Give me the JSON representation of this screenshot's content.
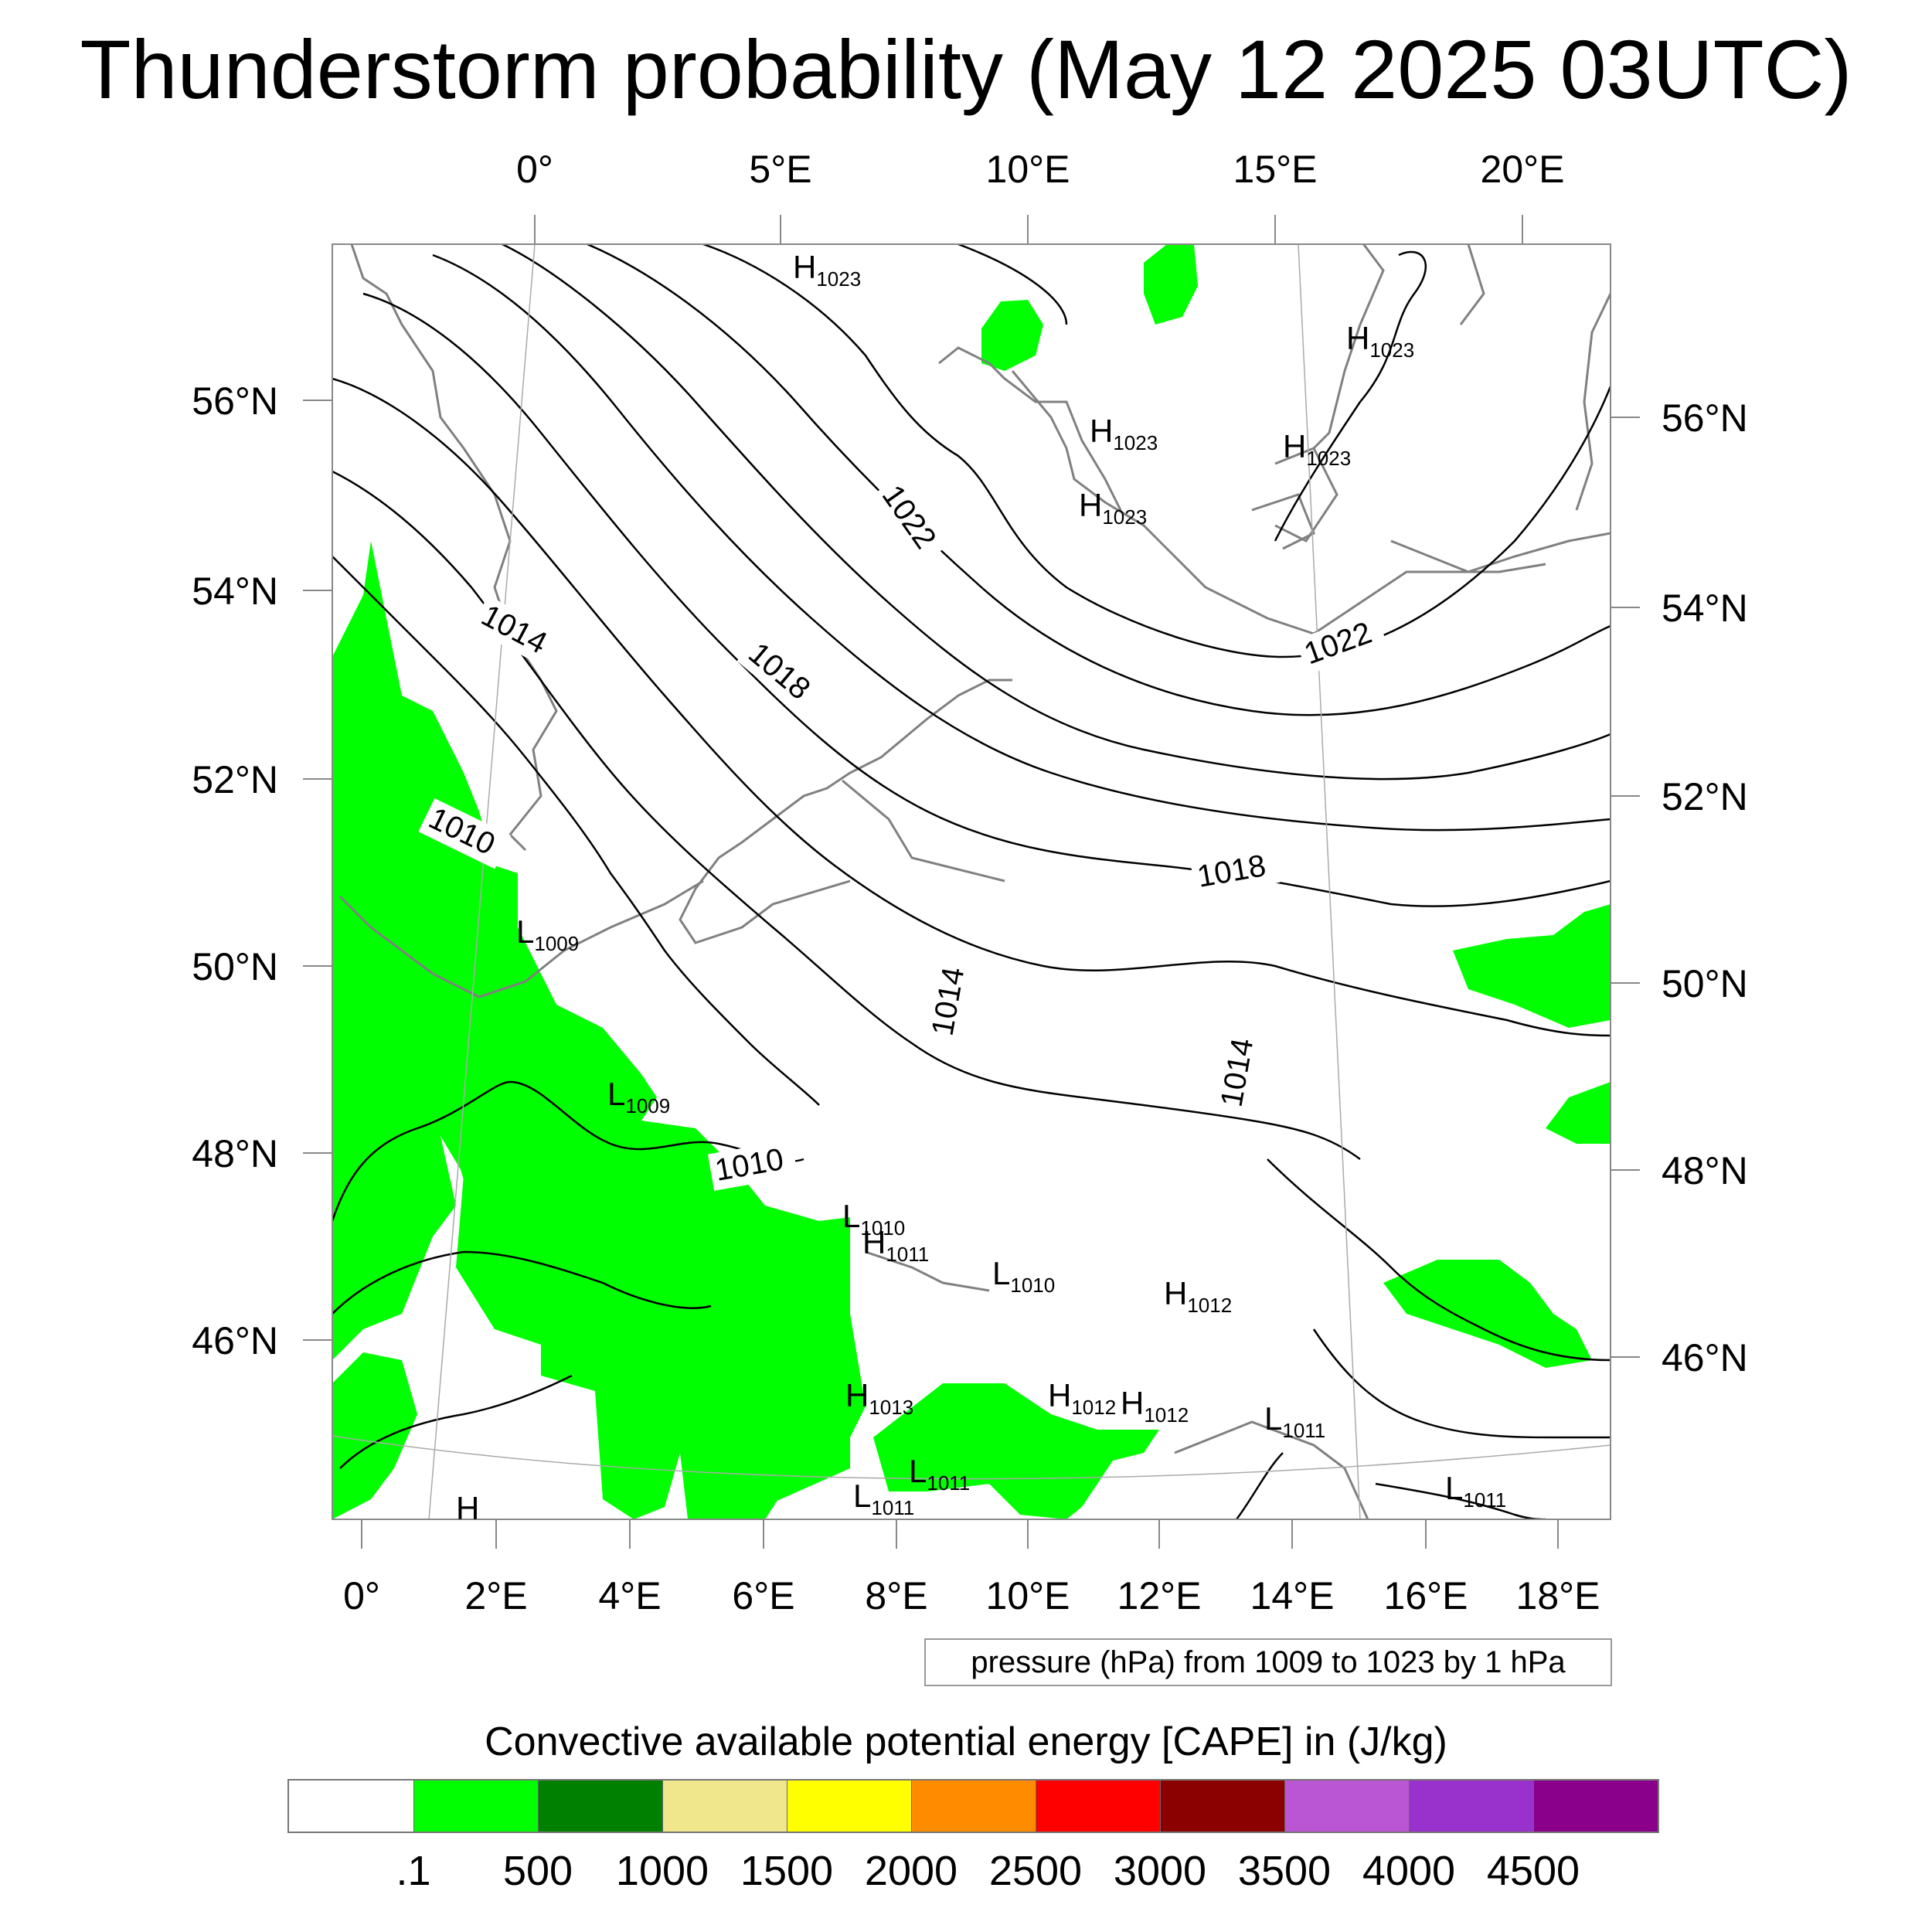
{
  "title": "Thunderstorm probability (May 12 2025 03UTC)",
  "map": {
    "top_lon_labels": [
      "0°",
      "5°E",
      "10°E",
      "15°E",
      "20°E"
    ],
    "bottom_lon_labels": [
      "0°",
      "2°E",
      "4°E",
      "6°E",
      "8°E",
      "10°E",
      "12°E",
      "14°E",
      "16°E",
      "18°E"
    ],
    "left_lat_labels": [
      "56°N",
      "54°N",
      "52°N",
      "50°N",
      "48°N",
      "46°N"
    ],
    "right_lat_labels": [
      "56°N",
      "54°N",
      "52°N",
      "50°N",
      "48°N",
      "46°N"
    ],
    "isobar_labels": [
      "1022",
      "1014",
      "1018",
      "1010",
      "1022",
      "1018",
      "1014",
      "1014",
      "1010"
    ],
    "pressure_centers": [
      {
        "type": "H",
        "value": "1023"
      },
      {
        "type": "H",
        "value": "1023"
      },
      {
        "type": "H",
        "value": "1023"
      },
      {
        "type": "H",
        "value": "1023"
      },
      {
        "type": "H",
        "value": "1023"
      },
      {
        "type": "L",
        "value": "1009"
      },
      {
        "type": "L",
        "value": "1009"
      },
      {
        "type": "L",
        "value": "1010"
      },
      {
        "type": "H",
        "value": "1011"
      },
      {
        "type": "L",
        "value": "1010"
      },
      {
        "type": "H",
        "value": "1012"
      },
      {
        "type": "H",
        "value": "1013"
      },
      {
        "type": "H",
        "value": "1012"
      },
      {
        "type": "H",
        "value": "1012"
      },
      {
        "type": "L",
        "value": "1011"
      },
      {
        "type": "L",
        "value": "1011"
      },
      {
        "type": "L",
        "value": "1011"
      },
      {
        "type": "L",
        "value": "1011"
      },
      {
        "type": "H",
        "value": ""
      }
    ],
    "colors": {
      "cape_low": "#00ff00",
      "isobar": "#000000",
      "coast": "#808080"
    }
  },
  "pressure_note": "pressure (hPa) from 1009 to 1023 by 1 hPa",
  "colorbar": {
    "title": "Convective available potential energy [CAPE] in (J/kg)",
    "colors": [
      "#ffffff",
      "#00ff00",
      "#008000",
      "#f0e68c",
      "#ffff00",
      "#ff8c00",
      "#ff0000",
      "#8b0000",
      "#ba55d3",
      "#9932cc",
      "#8b008b"
    ],
    "tick_labels": [
      ".1",
      "500",
      "1000",
      "1500",
      "2000",
      "2500",
      "3000",
      "3500",
      "4000",
      "4500"
    ]
  }
}
